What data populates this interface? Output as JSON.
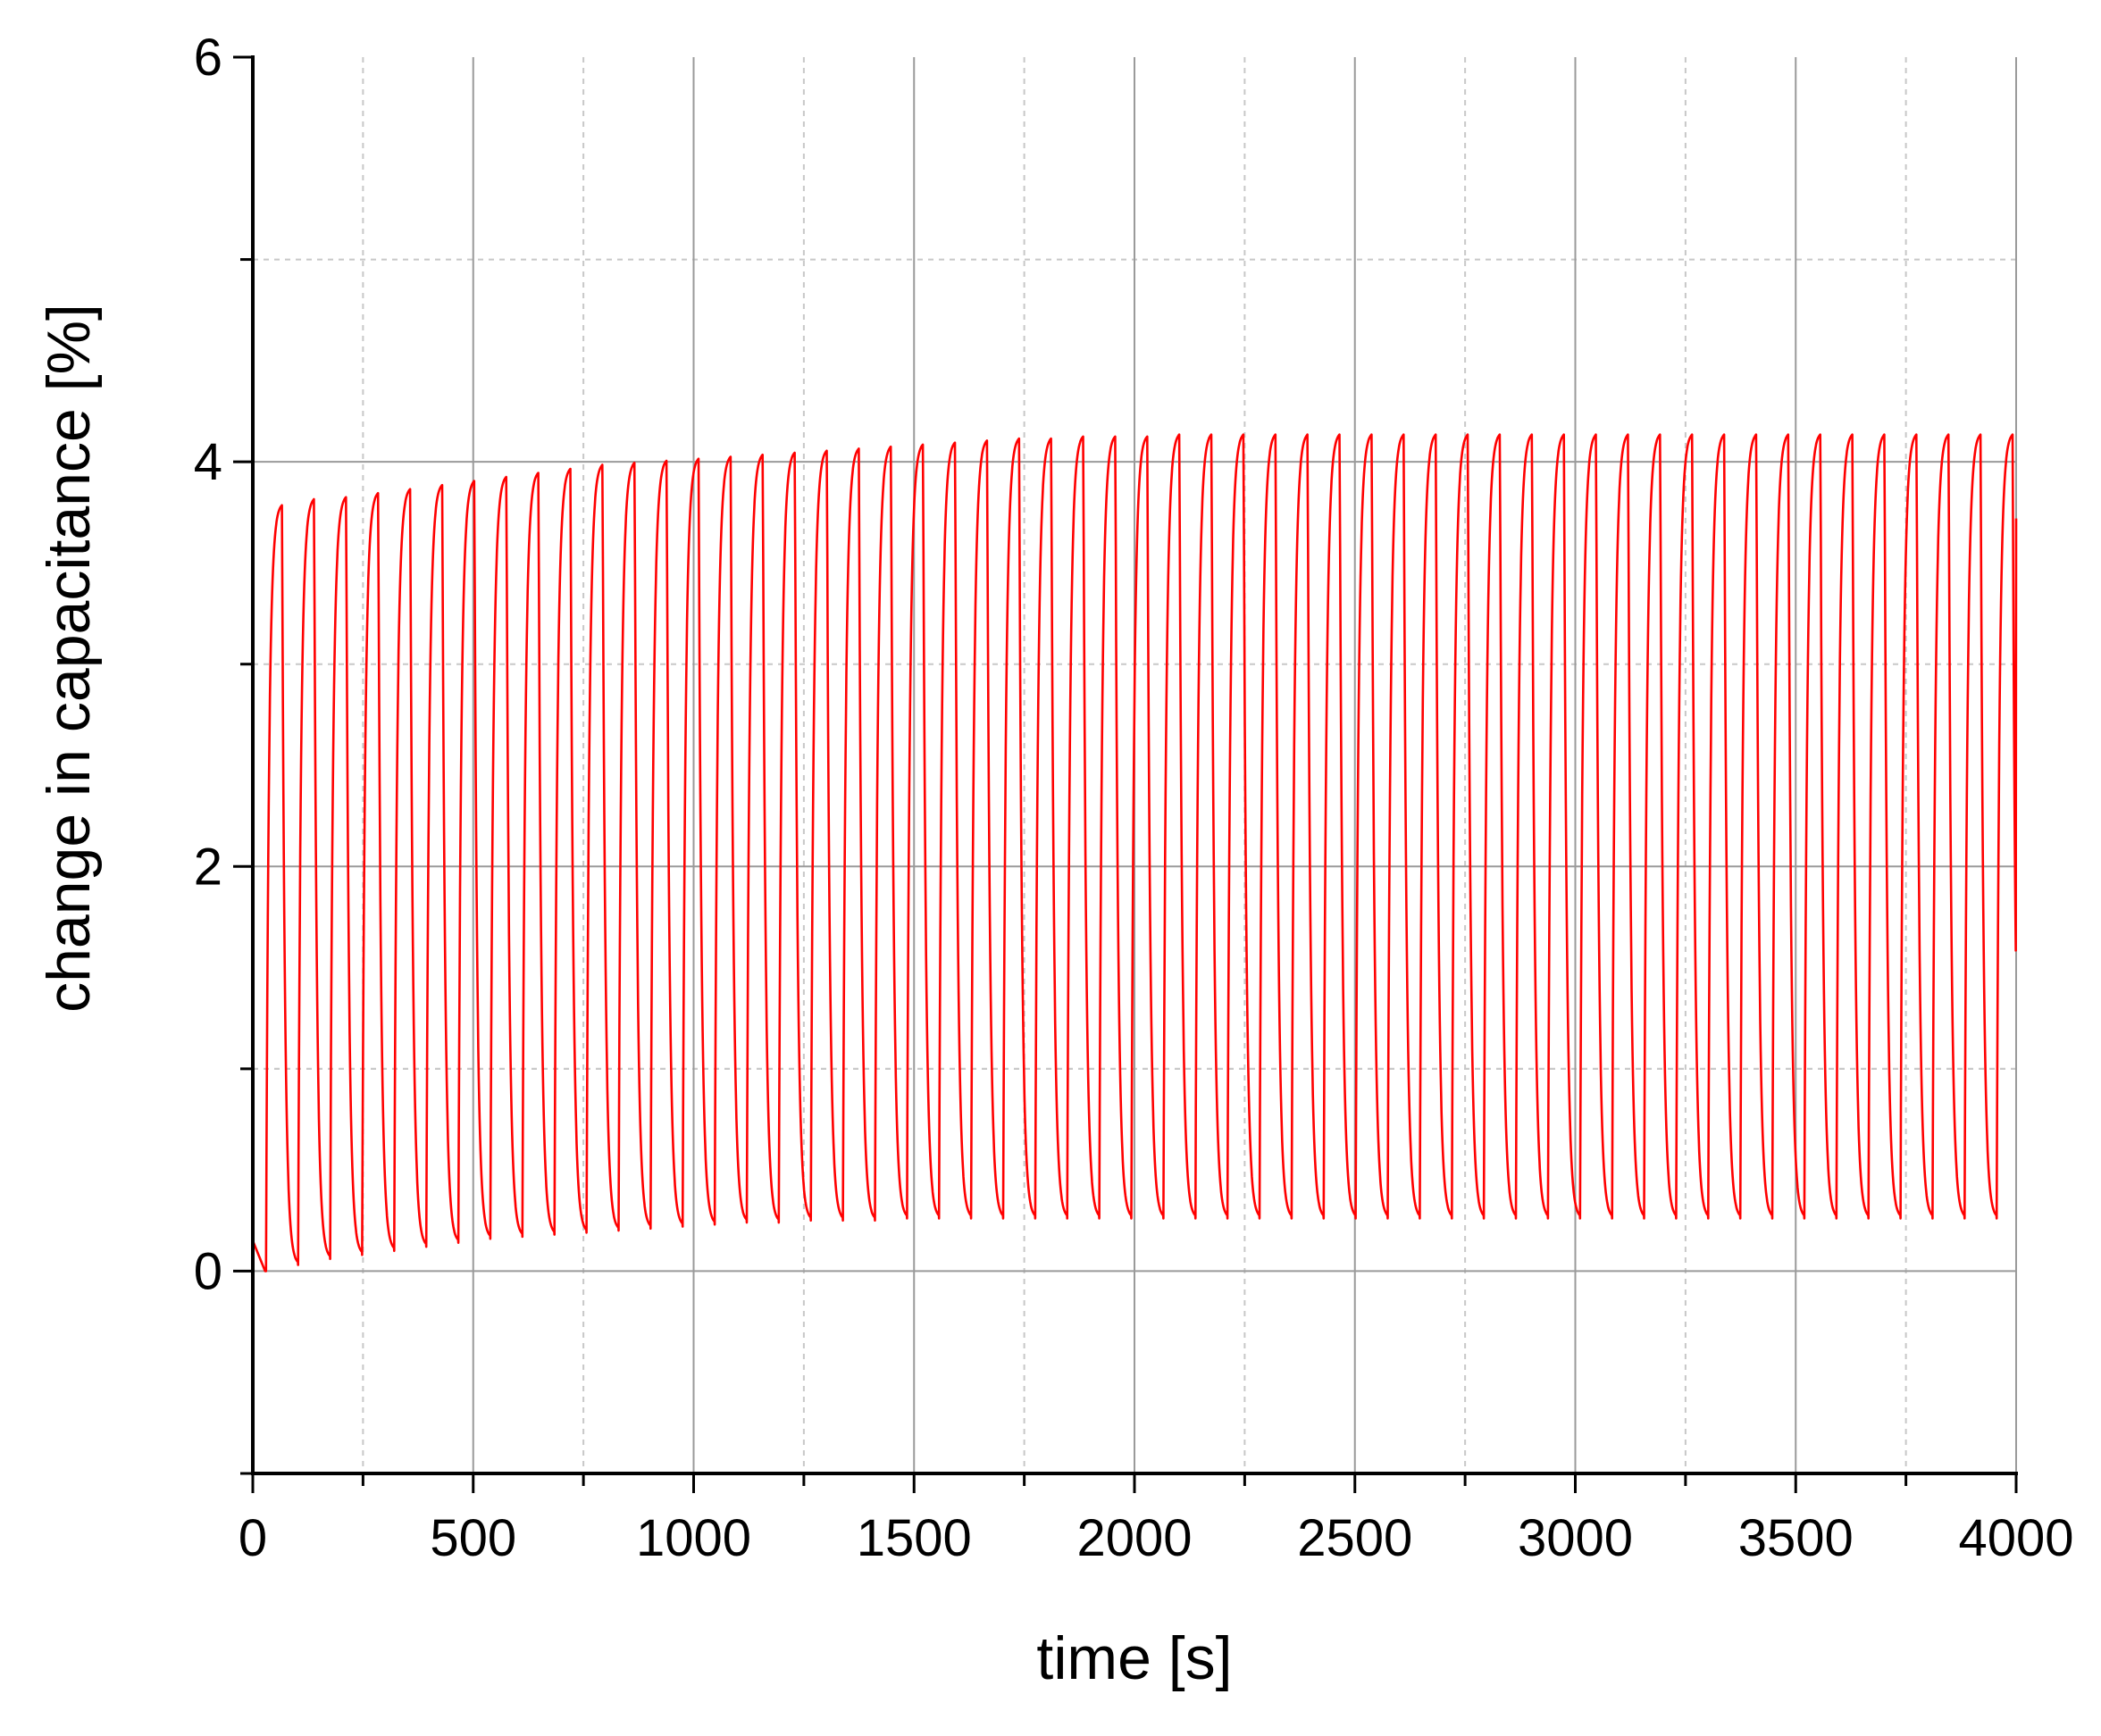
{
  "chart_data": {
    "type": "line",
    "title": "",
    "xlabel": "time [s]",
    "ylabel": "change in capacitance [%]",
    "xlim": [
      0,
      4000
    ],
    "ylim": [
      -1,
      6
    ],
    "xticks": [
      0,
      500,
      1000,
      1500,
      2000,
      2500,
      3000,
      3500,
      4000
    ],
    "xtick_labels": [
      "0",
      "500",
      "1000",
      "1500",
      "2000",
      "2500",
      "3000",
      "3500",
      "4000"
    ],
    "yticks": [
      0,
      2,
      4,
      6
    ],
    "ytick_labels": [
      "0",
      "2",
      "4",
      "6"
    ],
    "grid": true,
    "legend": "none",
    "series": [
      {
        "color": "#ff0000",
        "cycle_period_s": 72.7,
        "cycles": 55,
        "peaks": [
          3.8,
          3.83,
          3.84,
          3.86,
          3.88,
          3.9,
          3.92,
          3.94,
          3.96,
          3.98,
          4.0,
          4.01,
          4.02,
          4.03,
          4.04,
          4.05,
          4.06,
          4.07,
          4.08,
          4.09,
          4.1,
          4.11,
          4.12,
          4.13,
          4.13,
          4.14,
          4.14,
          4.14,
          4.15,
          4.15,
          4.15,
          4.15,
          4.15,
          4.15,
          4.15,
          4.15,
          4.15,
          4.15,
          4.15,
          4.15,
          4.15,
          4.15,
          4.15,
          4.15,
          4.15,
          4.15,
          4.15,
          4.15,
          4.15,
          4.15,
          4.15,
          4.15,
          4.15,
          4.15,
          4.15
        ],
        "troughs": [
          0.0,
          0.03,
          0.06,
          0.08,
          0.1,
          0.12,
          0.14,
          0.16,
          0.17,
          0.18,
          0.19,
          0.2,
          0.21,
          0.22,
          0.23,
          0.24,
          0.24,
          0.25,
          0.25,
          0.25,
          0.26,
          0.26,
          0.26,
          0.26,
          0.26,
          0.26,
          0.26,
          0.26,
          0.26,
          0.26,
          0.26,
          0.26,
          0.26,
          0.26,
          0.26,
          0.26,
          0.26,
          0.26,
          0.26,
          0.26,
          0.26,
          0.26,
          0.26,
          0.26,
          0.26,
          0.26,
          0.26,
          0.26,
          0.26,
          0.26,
          0.26,
          0.26,
          0.26,
          0.26,
          0.26
        ],
        "start_value": 0.15,
        "end_value": 3.72
      }
    ]
  }
}
